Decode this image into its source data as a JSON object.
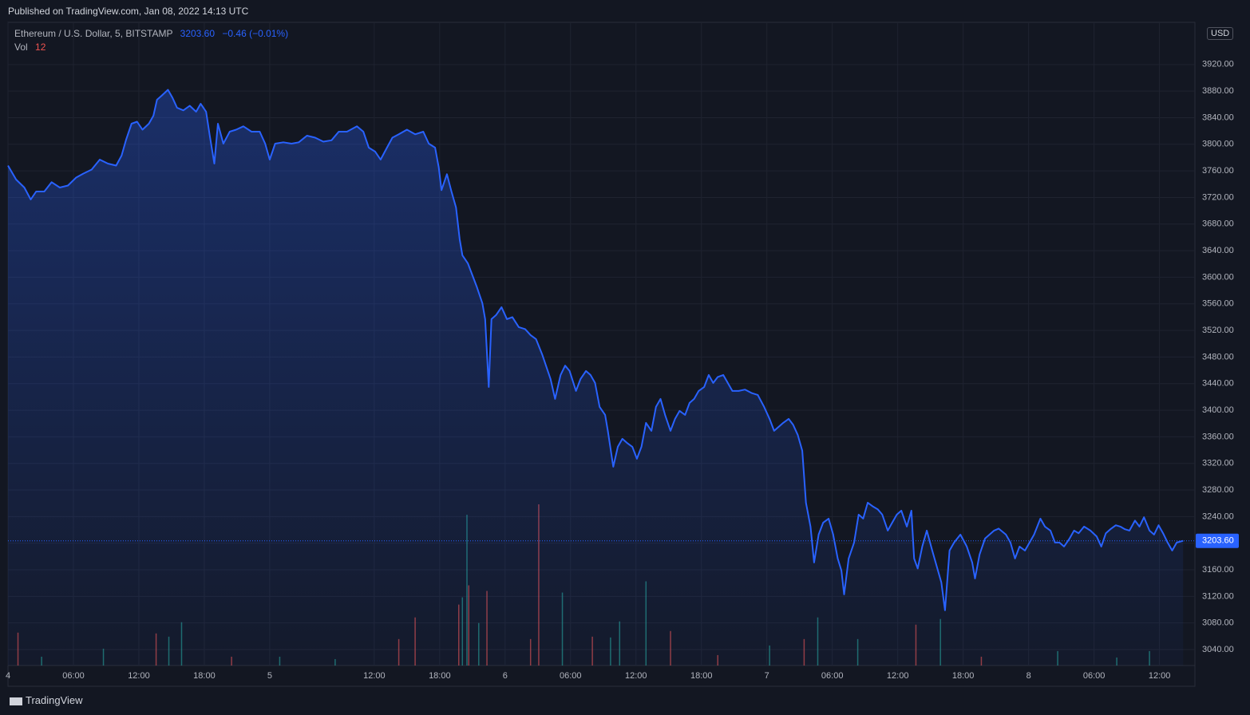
{
  "header": {
    "published": "Published on TradingView.com, Jan 08, 2022 14:13 UTC"
  },
  "footer": {
    "brand": "TradingView"
  },
  "chart_data": {
    "type": "area",
    "title": "Ethereum / U.S. Dollar, 5, BITSTAMP",
    "last_price": {
      "value": 3203.6,
      "label": "3203.60"
    },
    "change": "−0.46 (−0.01%)",
    "currency": "USD",
    "volume_label": "Vol",
    "volume_last": 12,
    "color": "#2962ff",
    "grid": true,
    "x": [
      0,
      9,
      18,
      25,
      31,
      40,
      48,
      57,
      66,
      75,
      83,
      92,
      101,
      110,
      119,
      125,
      130,
      136,
      142,
      148,
      155,
      160,
      164,
      169,
      176,
      181,
      186,
      193,
      200,
      207,
      212,
      218,
      222,
      227,
      231,
      237,
      244,
      251,
      259,
      268,
      277,
      283,
      288,
      294,
      303,
      312,
      320,
      329,
      338,
      347,
      356,
      364,
      373,
      384,
      391,
      397,
      404,
      410,
      417,
      423,
      430,
      439,
      448,
      457,
      463,
      470,
      474,
      477,
      483,
      488,
      493,
      497,
      500,
      506,
      511,
      516,
      522,
      525,
      529,
      532,
      537,
      543,
      549,
      555,
      562,
      569,
      575,
      581,
      588,
      594,
      597,
      602,
      608,
      613,
      618,
      625,
      630,
      636,
      641,
      646,
      651,
      657,
      660,
      666,
      671,
      676,
      681,
      687,
      692,
      697,
      702,
      708,
      713,
      718,
      723,
      729,
      734,
      739,
      745,
      750,
      755,
      760,
      766,
      771,
      776,
      781,
      787,
      792,
      797,
      804,
      811,
      818,
      825,
      832,
      838,
      843,
      848,
      853,
      859,
      864,
      869,
      874,
      878,
      883,
      887,
      892,
      897,
      903,
      908,
      913,
      917,
      920,
      925,
      931,
      936,
      941,
      946,
      952,
      957,
      962,
      968,
      973,
      978,
      983,
      989,
      994,
      997,
      1001,
      1006,
      1011,
      1017,
      1022,
      1027,
      1031,
      1036,
      1041,
      1048,
      1055,
      1061,
      1064,
      1069,
      1075,
      1080,
      1085,
      1090,
      1098,
      1103,
      1108,
      1113,
      1119,
      1124,
      1129,
      1136,
      1141,
      1147,
      1152,
      1157,
      1162,
      1168,
      1173,
      1178,
      1184,
      1191,
      1198,
      1203,
      1208,
      1213,
      1219,
      1224,
      1229,
      1234,
      1240,
      1245,
      1250,
      1256,
      1261,
      1266,
      1271,
      1276,
      1281,
      1286,
      1293
    ],
    "values": [
      3768,
      3747,
      3735,
      3717,
      3729,
      3729,
      3743,
      3735,
      3738,
      3750,
      3756,
      3762,
      3777,
      3771,
      3768,
      3783,
      3807,
      3831,
      3834,
      3822,
      3831,
      3843,
      3867,
      3873,
      3882,
      3870,
      3855,
      3851,
      3858,
      3849,
      3861,
      3849,
      3813,
      3771,
      3831,
      3801,
      3819,
      3822,
      3827,
      3819,
      3819,
      3801,
      3777,
      3801,
      3803,
      3801,
      3803,
      3813,
      3810,
      3804,
      3806,
      3819,
      3819,
      3827,
      3819,
      3795,
      3789,
      3777,
      3795,
      3810,
      3815,
      3822,
      3815,
      3819,
      3801,
      3795,
      3765,
      3731,
      3755,
      3729,
      3705,
      3657,
      3633,
      3621,
      3603,
      3585,
      3561,
      3537,
      3435,
      3537,
      3543,
      3555,
      3537,
      3540,
      3525,
      3522,
      3513,
      3507,
      3483,
      3459,
      3447,
      3417,
      3453,
      3467,
      3459,
      3429,
      3447,
      3459,
      3453,
      3441,
      3405,
      3393,
      3369,
      3315,
      3345,
      3357,
      3351,
      3345,
      3327,
      3345,
      3381,
      3369,
      3405,
      3417,
      3393,
      3369,
      3387,
      3399,
      3393,
      3411,
      3417,
      3429,
      3435,
      3453,
      3441,
      3450,
      3453,
      3441,
      3429,
      3429,
      3431,
      3426,
      3423,
      3405,
      3387,
      3369,
      3375,
      3381,
      3387,
      3378,
      3363,
      3339,
      3261,
      3225,
      3171,
      3213,
      3231,
      3237,
      3213,
      3177,
      3159,
      3123,
      3177,
      3201,
      3243,
      3237,
      3261,
      3255,
      3251,
      3243,
      3219,
      3231,
      3243,
      3249,
      3225,
      3249,
      3177,
      3162,
      3195,
      3219,
      3189,
      3165,
      3141,
      3099,
      3189,
      3201,
      3213,
      3195,
      3171,
      3147,
      3183,
      3207,
      3213,
      3219,
      3222,
      3213,
      3201,
      3177,
      3195,
      3189,
      3201,
      3213,
      3237,
      3225,
      3219,
      3201,
      3201,
      3195,
      3207,
      3219,
      3215,
      3225,
      3219,
      3210,
      3195,
      3215,
      3221,
      3227,
      3225,
      3221,
      3219,
      3234,
      3225,
      3239,
      3219,
      3213,
      3227,
      3215,
      3201,
      3189,
      3201,
      3203.6
    ],
    "volume": {
      "x": [
        11,
        105,
        163,
        177,
        191,
        430,
        448,
        496,
        500,
        505,
        507,
        518,
        527,
        584,
        610,
        643,
        663,
        673,
        702,
        729,
        838,
        876,
        891,
        935,
        999,
        1026,
        1155,
        1256,
        575,
        37,
        246,
        299,
        360,
        781,
        1071,
        1220
      ],
      "values": [
        41,
        21,
        40,
        36,
        54,
        33,
        60,
        76,
        85,
        188,
        100,
        53,
        93,
        201,
        91,
        36,
        35,
        55,
        105,
        43,
        25,
        33,
        60,
        33,
        51,
        58,
        18,
        18,
        33,
        11,
        11,
        11,
        8,
        13,
        11,
        10
      ],
      "colors": [
        "#ef5350",
        "#26a69a",
        "#ef5350",
        "#26a69a",
        "#26a69a",
        "#ef5350",
        "#ef5350",
        "#ef5350",
        "#26a69a",
        "#26a69a",
        "#ef5350",
        "#26a69a",
        "#ef5350",
        "#ef5350",
        "#26a69a",
        "#ef5350",
        "#26a69a",
        "#26a69a",
        "#26a69a",
        "#ef5350",
        "#26a69a",
        "#ef5350",
        "#26a69a",
        "#26a69a",
        "#ef5350",
        "#26a69a",
        "#26a69a",
        "#26a69a",
        "#ef5350",
        "#26a69a",
        "#ef5350",
        "#26a69a",
        "#26a69a",
        "#ef5350",
        "#ef5350",
        "#26a69a"
      ]
    },
    "volume_ylim": [
      0,
      800
    ],
    "xlim": [
      0,
      1306
    ],
    "xticks": [
      {
        "value": 0,
        "label": "4"
      },
      {
        "value": 72,
        "label": "06:00"
      },
      {
        "value": 144,
        "label": "12:00"
      },
      {
        "value": 216,
        "label": "18:00"
      },
      {
        "value": 288,
        "label": "5"
      },
      {
        "value": 403,
        "label": "12:00"
      },
      {
        "value": 475,
        "label": "18:00"
      },
      {
        "value": 547,
        "label": "6"
      },
      {
        "value": 619,
        "label": "06:00"
      },
      {
        "value": 691,
        "label": "12:00"
      },
      {
        "value": 763,
        "label": "18:00"
      },
      {
        "value": 835,
        "label": "7"
      },
      {
        "value": 907,
        "label": "06:00"
      },
      {
        "value": 979,
        "label": "12:00"
      },
      {
        "value": 1051,
        "label": "18:00"
      },
      {
        "value": 1123,
        "label": "8"
      },
      {
        "value": 1195,
        "label": "06:00"
      },
      {
        "value": 1267,
        "label": "12:00"
      }
    ],
    "ylim": [
      3016,
      3981
    ],
    "yticks": [
      {
        "value": 3040,
        "label": "3040.00"
      },
      {
        "value": 3080,
        "label": "3080.00"
      },
      {
        "value": 3120,
        "label": "3120.00"
      },
      {
        "value": 3160,
        "label": "3160.00"
      },
      {
        "value": 3200,
        "label": "3200.00"
      },
      {
        "value": 3240,
        "label": "3240.00"
      },
      {
        "value": 3280,
        "label": "3280.00"
      },
      {
        "value": 3320,
        "label": "3320.00"
      },
      {
        "value": 3360,
        "label": "3360.00"
      },
      {
        "value": 3400,
        "label": "3400.00"
      },
      {
        "value": 3440,
        "label": "3440.00"
      },
      {
        "value": 3480,
        "label": "3480.00"
      },
      {
        "value": 3520,
        "label": "3520.00"
      },
      {
        "value": 3560,
        "label": "3560.00"
      },
      {
        "value": 3600,
        "label": "3600.00"
      },
      {
        "value": 3640,
        "label": "3640.00"
      },
      {
        "value": 3680,
        "label": "3680.00"
      },
      {
        "value": 3720,
        "label": "3720.00"
      },
      {
        "value": 3760,
        "label": "3760.00"
      },
      {
        "value": 3800,
        "label": "3800.00"
      },
      {
        "value": 3840,
        "label": "3840.00"
      },
      {
        "value": 3880,
        "label": "3880.00"
      },
      {
        "value": 3920,
        "label": "3920.00"
      }
    ]
  }
}
